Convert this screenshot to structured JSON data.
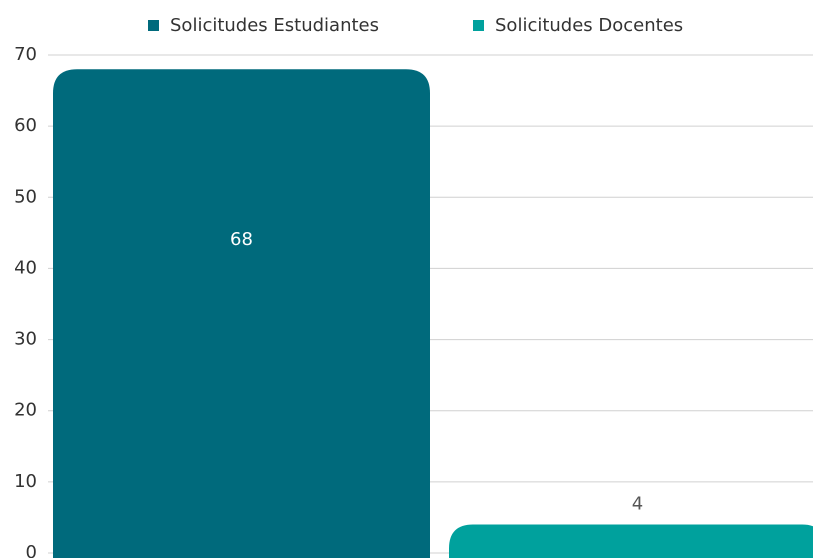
{
  "chart_data": {
    "type": "bar",
    "categories": [
      null
    ],
    "series": [
      {
        "name": "Solicitudes Estudiantes",
        "color": "#006a7c",
        "values": [
          68
        ]
      },
      {
        "name": "Solicitudes Docentes",
        "color": "#00a19d",
        "values": [
          4
        ]
      }
    ],
    "ylim": [
      0,
      70
    ],
    "yticks": [
      0,
      10,
      20,
      30,
      40,
      50,
      60,
      70
    ],
    "grid": true,
    "legend": "top"
  }
}
